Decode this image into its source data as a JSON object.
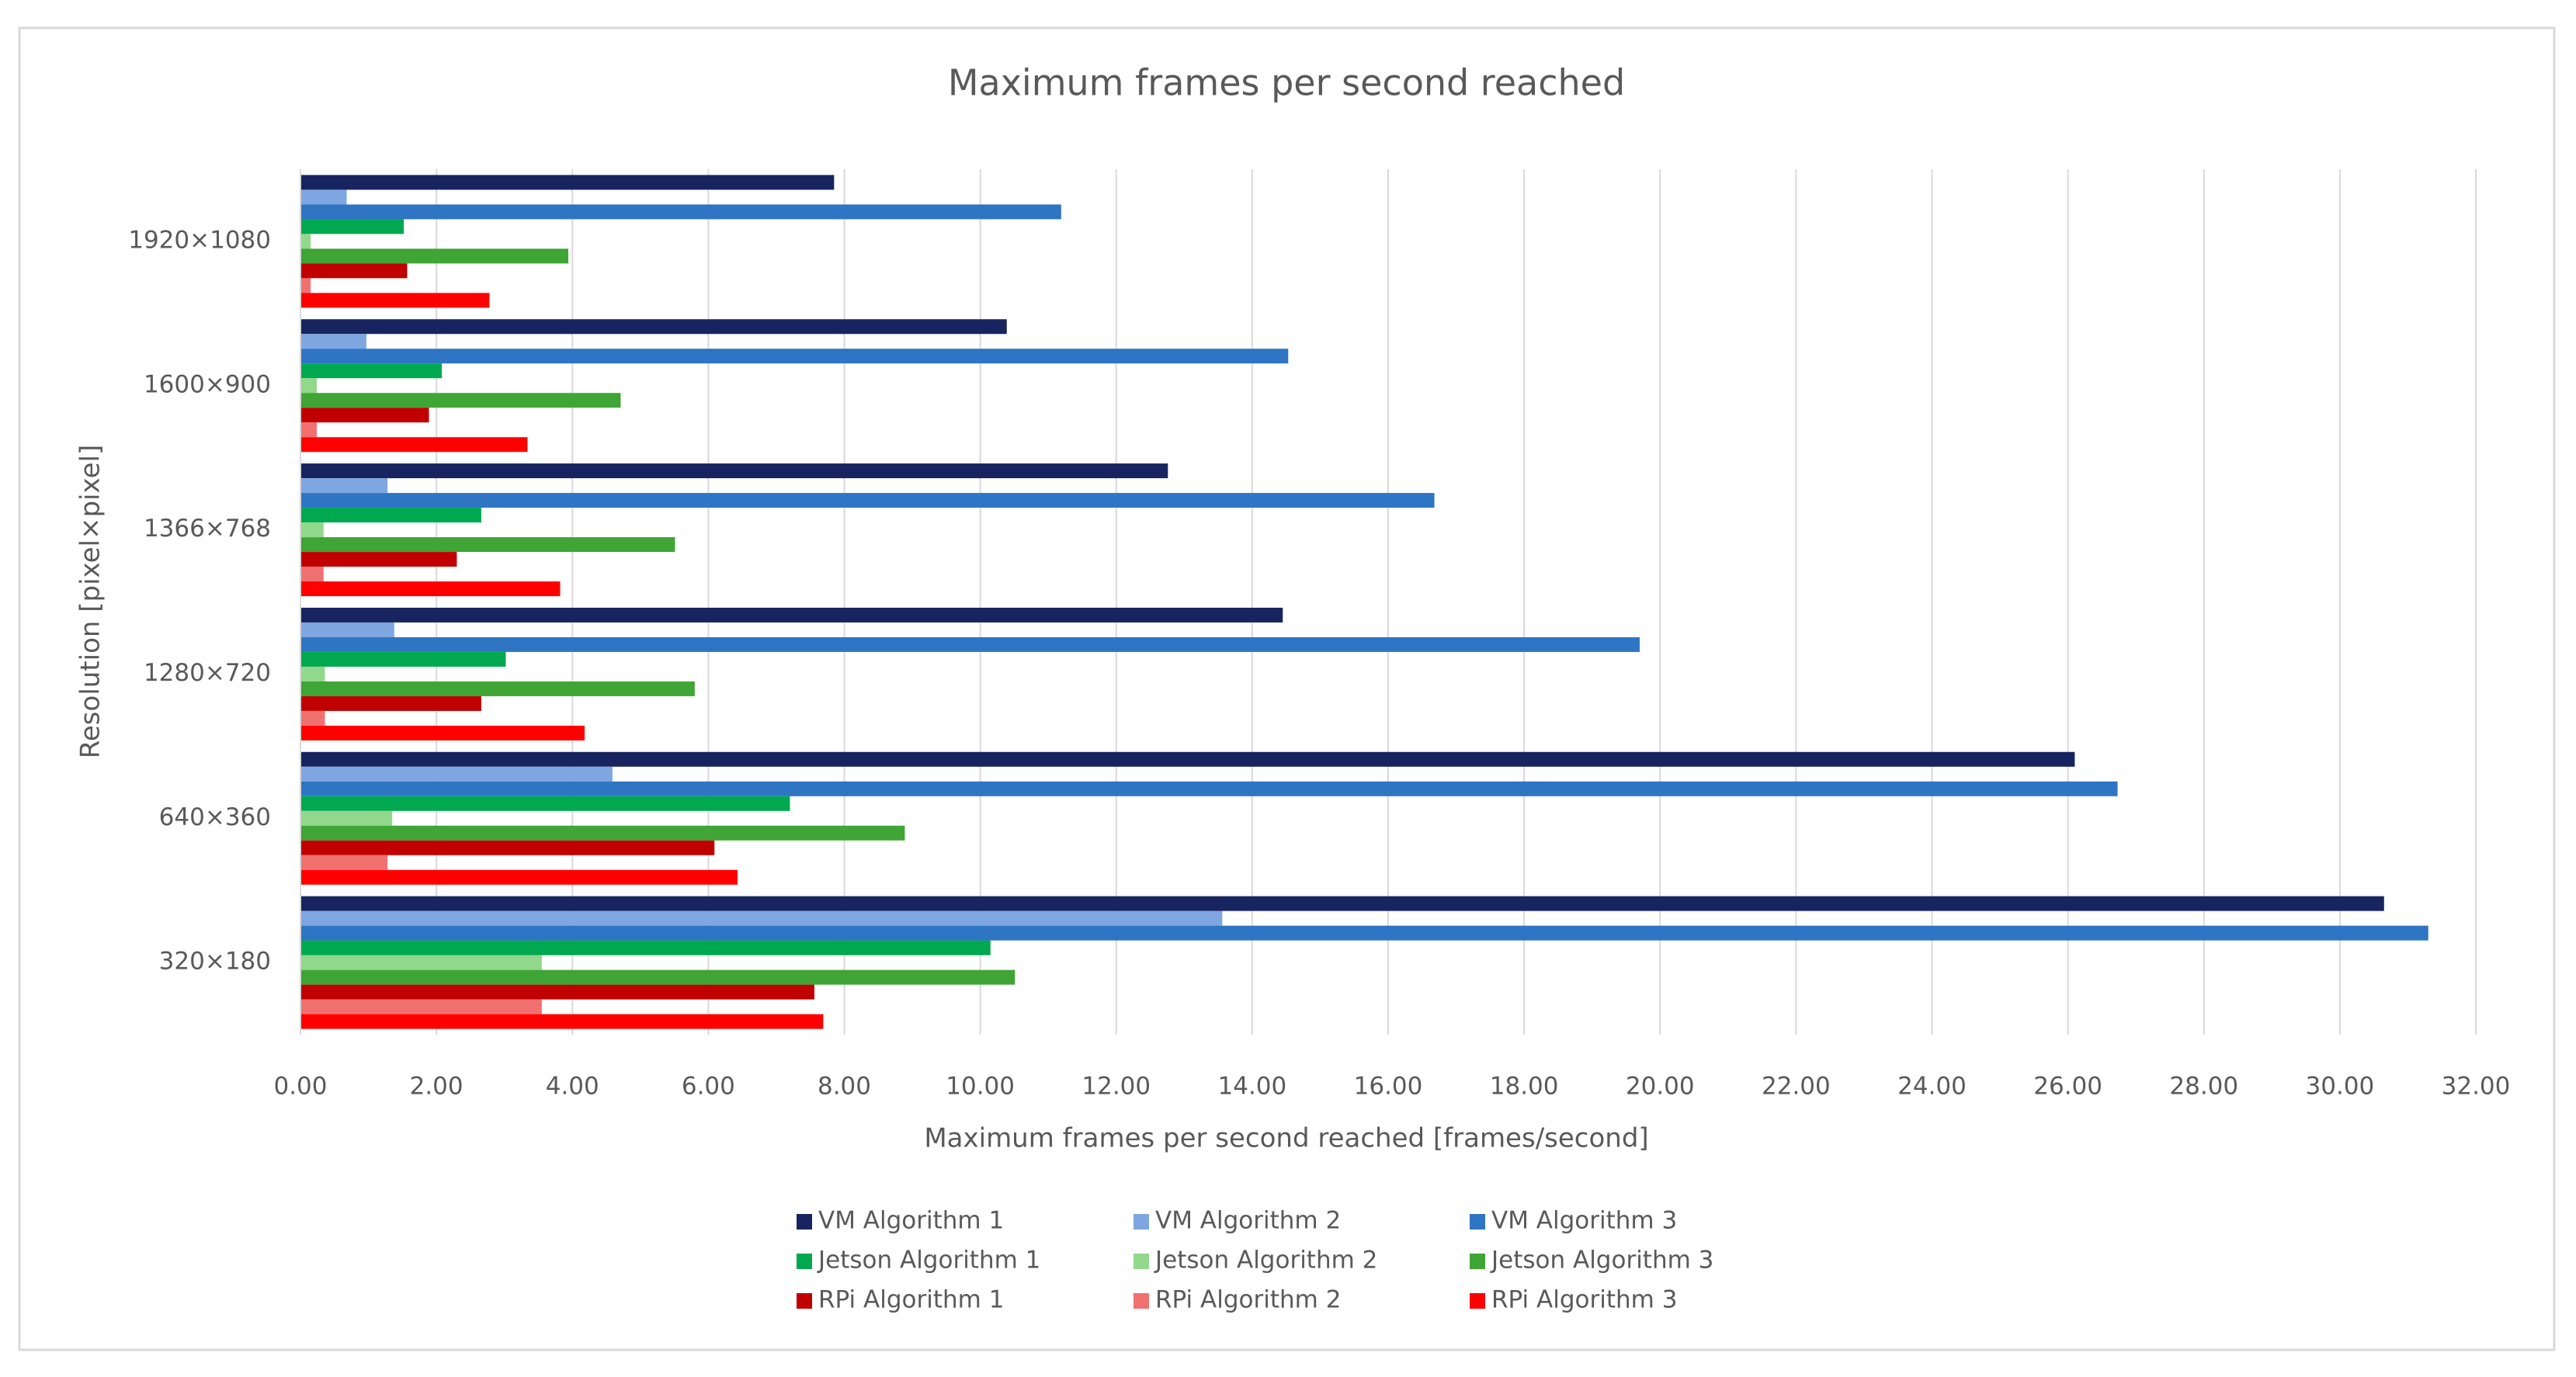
{
  "chart_data": {
    "type": "hbar",
    "title": "Maximum frames per second reached",
    "x_label": "Maximum frames per second reached [frames/second]",
    "y_label": "Resolution [pixel×pixel]",
    "categories": [
      "1920×1080",
      "1600×900",
      "1366×768",
      "1280×720",
      "640×360",
      "320×180"
    ],
    "series": [
      {
        "name": "VM Algorithm 1",
        "color": "#17245f",
        "values": [
          7.85,
          10.39,
          12.76,
          14.45,
          26.1,
          30.65
        ]
      },
      {
        "name": "VM Algorithm 2",
        "color": "#7ea6e0",
        "values": [
          0.68,
          0.97,
          1.28,
          1.38,
          4.59,
          13.56
        ]
      },
      {
        "name": "VM Algorithm 3",
        "color": "#2e75c4",
        "values": [
          11.19,
          14.53,
          16.68,
          19.7,
          26.73,
          31.3
        ]
      },
      {
        "name": "Jetson Algorithm 1",
        "color": "#00a84f",
        "values": [
          1.52,
          2.08,
          2.66,
          3.02,
          7.2,
          10.15
        ]
      },
      {
        "name": "Jetson Algorithm 2",
        "color": "#92d88c",
        "values": [
          0.15,
          0.24,
          0.34,
          0.36,
          1.35,
          3.55
        ]
      },
      {
        "name": "Jetson Algorithm 3",
        "color": "#3fa535",
        "values": [
          3.94,
          4.71,
          5.51,
          5.8,
          8.89,
          10.51
        ]
      },
      {
        "name": "RPi Algorithm 1",
        "color": "#c00000",
        "values": [
          1.57,
          1.89,
          2.3,
          2.66,
          6.09,
          7.56
        ]
      },
      {
        "name": "RPi Algorithm 2",
        "color": "#f07070",
        "values": [
          0.15,
          0.24,
          0.34,
          0.36,
          1.28,
          3.55
        ]
      },
      {
        "name": "RPi Algorithm 3",
        "color": "#ff0000",
        "values": [
          2.78,
          3.34,
          3.82,
          4.18,
          6.43,
          7.69
        ]
      }
    ],
    "xlim": [
      0,
      32
    ],
    "xticks": [
      {
        "value": 0,
        "label": "0.00"
      },
      {
        "value": 2,
        "label": "2.00"
      },
      {
        "value": 4,
        "label": "4.00"
      },
      {
        "value": 6,
        "label": "6.00"
      },
      {
        "value": 8,
        "label": "8.00"
      },
      {
        "value": 10,
        "label": "10.00"
      },
      {
        "value": 12,
        "label": "12.00"
      },
      {
        "value": 14,
        "label": "14.00"
      },
      {
        "value": 16,
        "label": "16.00"
      },
      {
        "value": 18,
        "label": "18.00"
      },
      {
        "value": 20,
        "label": "20.00"
      },
      {
        "value": 22,
        "label": "22.00"
      },
      {
        "value": 24,
        "label": "24.00"
      },
      {
        "value": 26,
        "label": "26.00"
      },
      {
        "value": 28,
        "label": "28.00"
      },
      {
        "value": 30,
        "label": "30.00"
      },
      {
        "value": 32,
        "label": "32.00"
      }
    ],
    "grid": true,
    "legend": "bottom"
  }
}
